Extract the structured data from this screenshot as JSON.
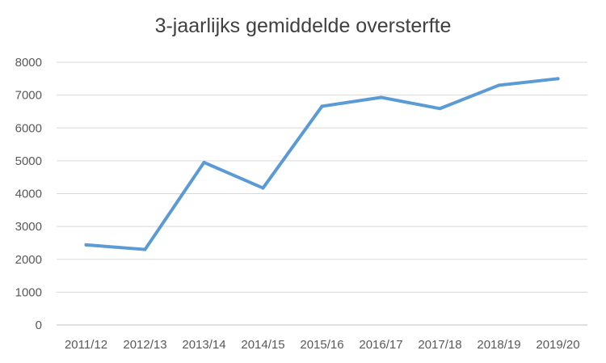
{
  "chart_data": {
    "type": "line",
    "title": "3-jaarlijks gemiddelde oversterfte",
    "xlabel": "",
    "ylabel": "",
    "categories": [
      "2011/12",
      "2012/13",
      "2013/14",
      "2014/15",
      "2015/16",
      "2016/17",
      "2017/18",
      "2018/19",
      "2019/20"
    ],
    "series": [
      {
        "values": [
          2440,
          2300,
          4950,
          4170,
          6660,
          6930,
          6590,
          7300,
          7500
        ]
      }
    ],
    "ylim": [
      0,
      8000
    ],
    "yticks": [
      "0",
      "1000",
      "2000",
      "3000",
      "4000",
      "5000",
      "6000",
      "7000",
      "8000"
    ],
    "grid": true,
    "legend": "none",
    "colors": {
      "line": "#5b9bd5",
      "grid": "#d9d9d9",
      "text": "#595959",
      "title": "#404040"
    }
  }
}
